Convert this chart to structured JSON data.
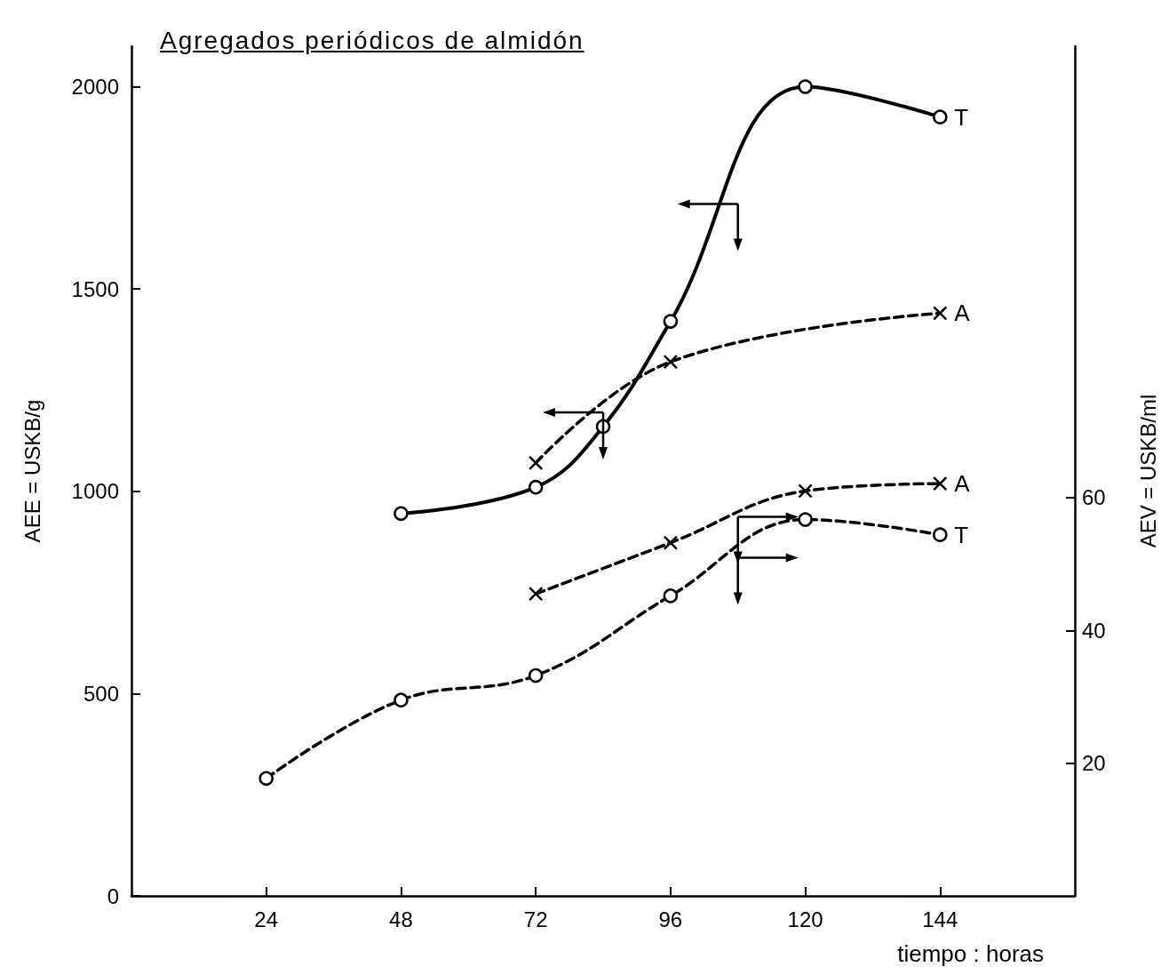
{
  "chart_data": {
    "type": "line",
    "title": "Agregados periódicos de almidón",
    "xlabel": "tiempo : horas",
    "ylabel": "AEE = USKB/g",
    "y2label": "AEV = USKB/ml",
    "xlim": [
      0,
      168
    ],
    "xticks": [
      24,
      48,
      72,
      96,
      120,
      144
    ],
    "ylim": [
      0,
      2100
    ],
    "yticks": [
      0,
      500,
      1000,
      1500,
      2000
    ],
    "y2lim": [
      0,
      128
    ],
    "y2ticks": [
      20,
      40,
      60
    ],
    "grid": false,
    "legend": false,
    "series": [
      {
        "name": "T",
        "color": "#000000",
        "axis": "y",
        "marker": "circle",
        "line_style": "solid",
        "x": [
          48,
          72,
          84,
          96,
          120,
          144
        ],
        "values": [
          945,
          1010,
          1160,
          1420,
          2000,
          1925
        ]
      },
      {
        "name": "A",
        "color": "#000000",
        "axis": "y",
        "marker": "cross",
        "line_style": "dashed",
        "x": [
          72,
          96,
          144
        ],
        "values": [
          1070,
          1320,
          1440
        ]
      },
      {
        "name": "A",
        "color": "#000000",
        "axis": "y2",
        "marker": "cross",
        "line_style": "dashed",
        "x": [
          72,
          96,
          120,
          144
        ],
        "values": [
          45.5,
          53.2,
          61,
          62.1
        ]
      },
      {
        "name": "T",
        "color": "#000000",
        "axis": "y2",
        "marker": "circle",
        "line_style": "dashed",
        "x": [
          24,
          48,
          72,
          96,
          120,
          144
        ],
        "values": [
          17.7,
          29.5,
          33.2,
          45.2,
          56.7,
          54.4
        ]
      }
    ]
  }
}
